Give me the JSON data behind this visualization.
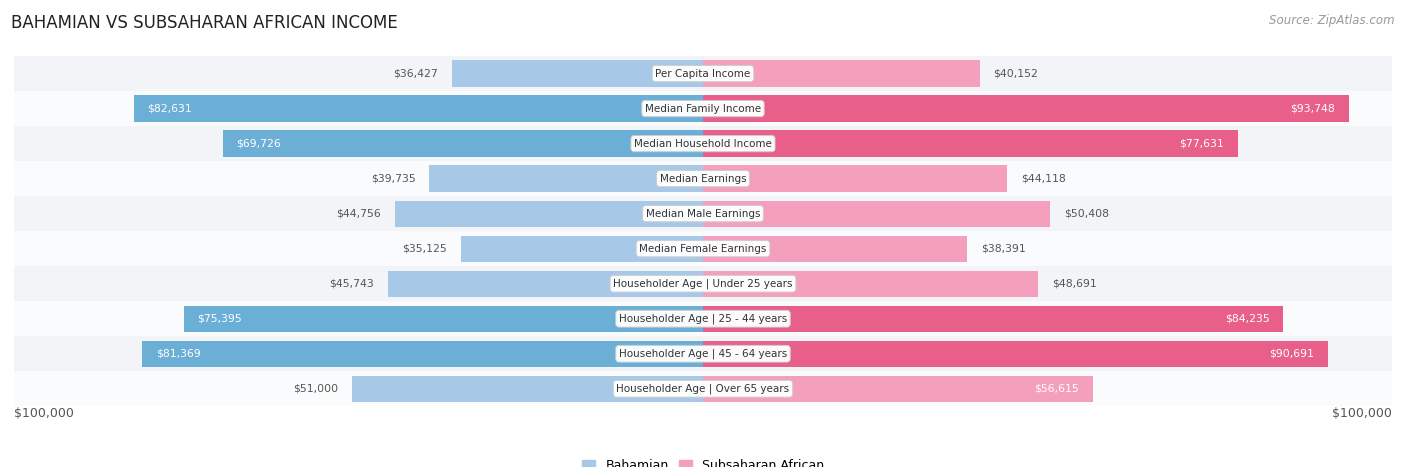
{
  "title": "BAHAMIAN VS SUBSAHARAN AFRICAN INCOME",
  "source": "Source: ZipAtlas.com",
  "categories": [
    "Per Capita Income",
    "Median Family Income",
    "Median Household Income",
    "Median Earnings",
    "Median Male Earnings",
    "Median Female Earnings",
    "Householder Age | Under 25 years",
    "Householder Age | 25 - 44 years",
    "Householder Age | 45 - 64 years",
    "Householder Age | Over 65 years"
  ],
  "bahamian": [
    36427,
    82631,
    69726,
    39735,
    44756,
    35125,
    45743,
    75395,
    81369,
    51000
  ],
  "subsaharan": [
    40152,
    93748,
    77631,
    44118,
    50408,
    38391,
    48691,
    84235,
    90691,
    56615
  ],
  "bahamian_color_light": "#A8C8E8",
  "bahamian_color_dark": "#6BAED6",
  "subsaharan_color_light": "#F4A0BC",
  "subsaharan_color_dark": "#E8608A",
  "row_bg_even": "#F2F4F7",
  "row_bg_odd": "#FAFBFC",
  "max_val": 100000,
  "legend_bahamian": "Bahamian",
  "legend_subsaharan": "Subsaharan African",
  "xlabel": "$100,000",
  "dark_threshold_bah": 60000,
  "dark_threshold_sub": 70000
}
